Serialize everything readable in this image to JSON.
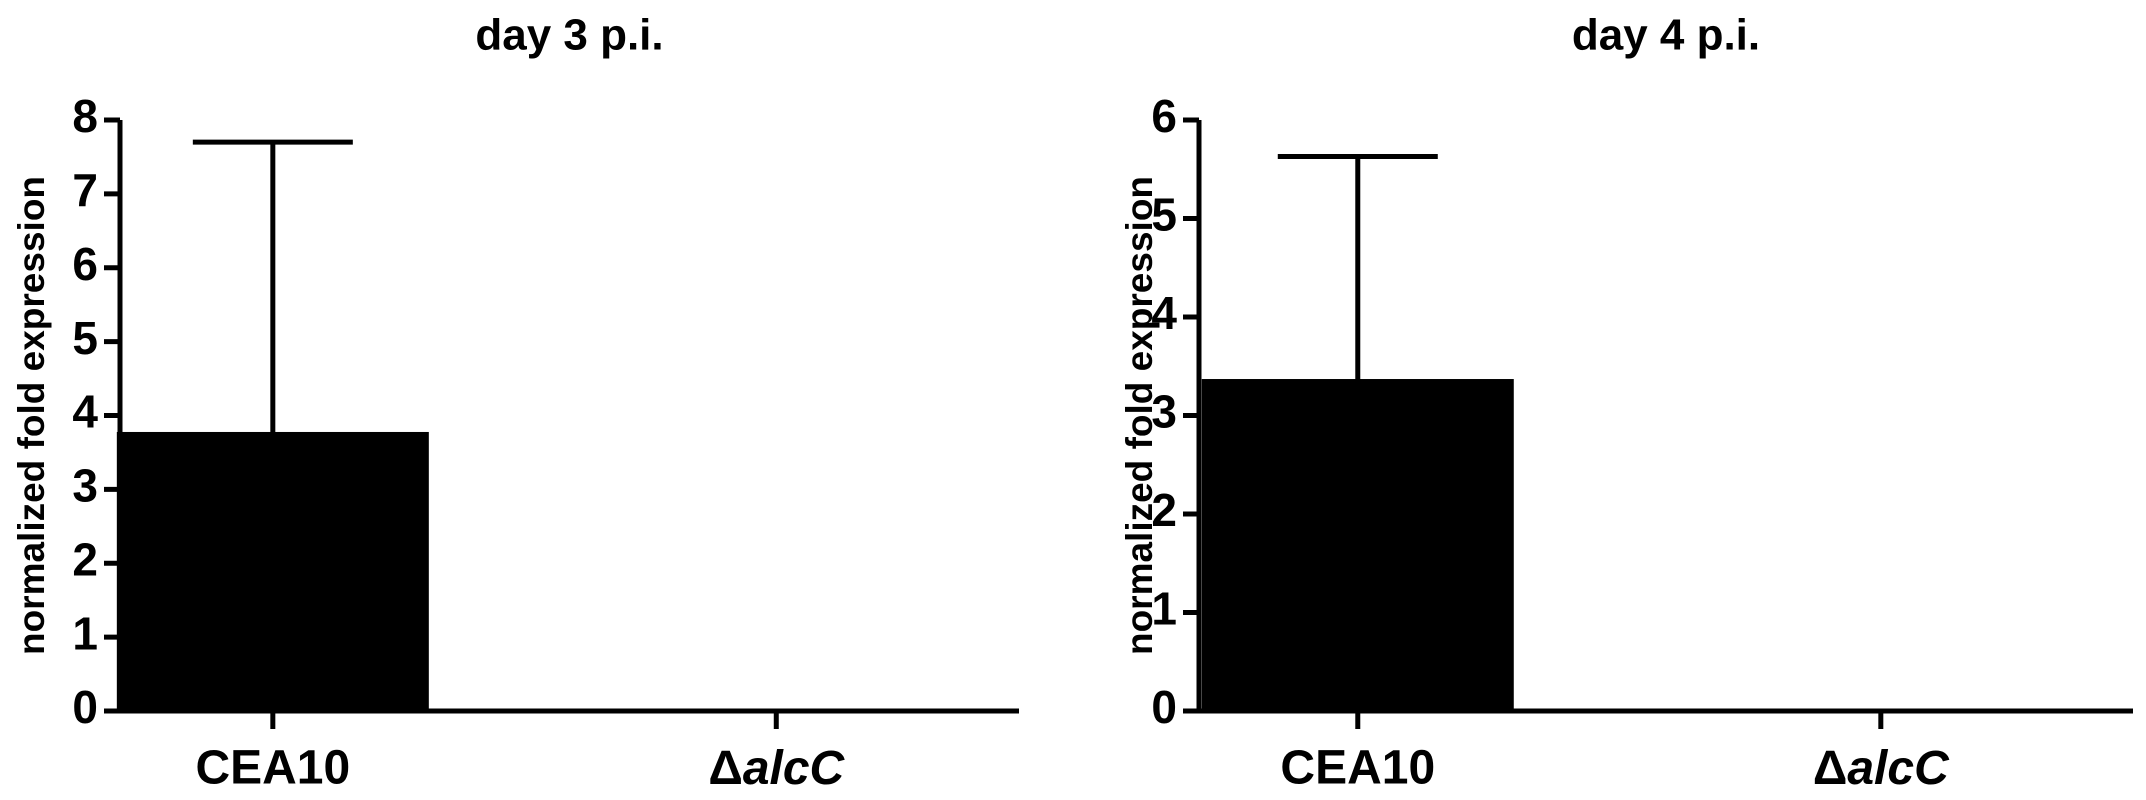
{
  "chart_data": [
    {
      "type": "bar",
      "title": "day 3 p.i.",
      "ylabel": "normalized fold expression",
      "categories": [
        "CEA10",
        "ΔalcC"
      ],
      "values": [
        3.75,
        0
      ],
      "errors": [
        3.95,
        0
      ],
      "color": "#000000",
      "ylim": [
        0,
        8
      ],
      "yticks": [
        0,
        1,
        2,
        3,
        4,
        5,
        6,
        7,
        8
      ]
    },
    {
      "type": "bar",
      "title": "day 4 p.i.",
      "ylabel": "normalized fold expression",
      "categories": [
        "CEA10",
        "ΔalcC"
      ],
      "values": [
        3.35,
        0
      ],
      "errors": [
        2.28,
        0
      ],
      "color": "#000000",
      "ylim": [
        0,
        6
      ],
      "yticks": [
        0,
        1,
        2,
        3,
        4,
        5,
        6
      ]
    }
  ]
}
